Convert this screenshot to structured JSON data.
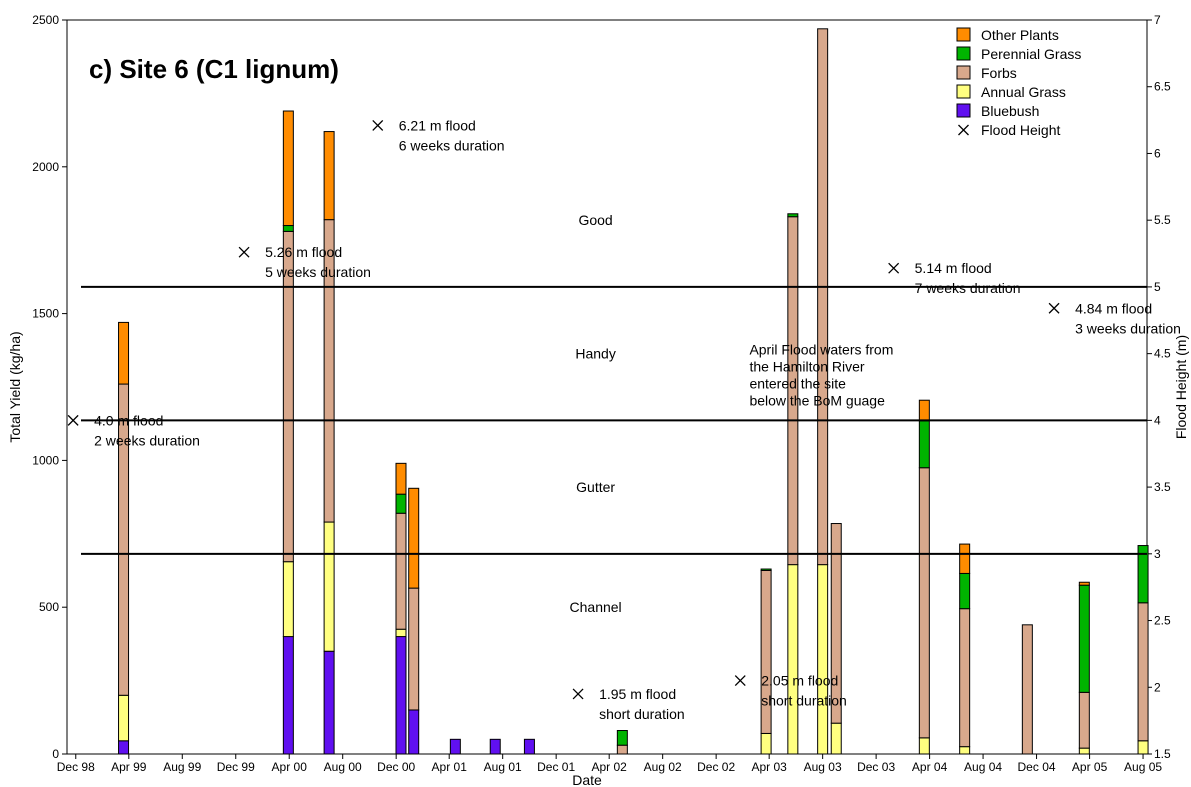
{
  "chart_data": {
    "type": "bar",
    "stacked": true,
    "title": "c) Site 6 (C1 lignum)",
    "xlabel": "Date",
    "ylabel": "Total Yield (kg/ha)",
    "y2label": "Flood Height (m)",
    "ylim": [
      0,
      2500
    ],
    "y2lim": [
      1.5,
      7
    ],
    "x_range": [
      "1998-11-11",
      "2005-08-10"
    ],
    "x_ticks": [
      {
        "date": "1998-12-01",
        "label": "Dec 98"
      },
      {
        "date": "1999-04-01",
        "label": "Apr 99"
      },
      {
        "date": "1999-08-01",
        "label": "Aug 99"
      },
      {
        "date": "1999-12-01",
        "label": "Dec 99"
      },
      {
        "date": "2000-04-01",
        "label": "Apr 00"
      },
      {
        "date": "2000-08-01",
        "label": "Aug 00"
      },
      {
        "date": "2000-12-01",
        "label": "Dec 00"
      },
      {
        "date": "2001-04-01",
        "label": "Apr 01"
      },
      {
        "date": "2001-08-01",
        "label": "Aug 01"
      },
      {
        "date": "2001-12-01",
        "label": "Dec 01"
      },
      {
        "date": "2002-04-01",
        "label": "Apr 02"
      },
      {
        "date": "2002-08-01",
        "label": "Aug 02"
      },
      {
        "date": "2002-12-01",
        "label": "Dec 02"
      },
      {
        "date": "2003-04-01",
        "label": "Apr 03"
      },
      {
        "date": "2003-08-01",
        "label": "Aug 03"
      },
      {
        "date": "2003-12-01",
        "label": "Dec 03"
      },
      {
        "date": "2004-04-01",
        "label": "Apr 04"
      },
      {
        "date": "2004-08-01",
        "label": "Aug 04"
      },
      {
        "date": "2004-12-01",
        "label": "Dec 04"
      },
      {
        "date": "2005-04-01",
        "label": "Apr 05"
      },
      {
        "date": "2005-08-01",
        "label": "Aug 05"
      }
    ],
    "y_ticks": [
      0,
      500,
      1000,
      1500,
      2000,
      2500
    ],
    "y2_ticks": [
      "1.5",
      "2",
      "2.5",
      "3",
      "3.5",
      "4",
      "4.5",
      "5",
      "5.5",
      "6",
      "6.5",
      "7"
    ],
    "series": [
      {
        "name": "Other Plants",
        "color": "#ff8c00"
      },
      {
        "name": "Perennial Grass",
        "color": "#00b400"
      },
      {
        "name": "Forbs",
        "color": "#d8a88c"
      },
      {
        "name": "Annual Grass",
        "color": "#ffff80"
      },
      {
        "name": "Bluebush",
        "color": "#6010f0"
      }
    ],
    "bars": [
      {
        "date": "1999-03-20",
        "values": {
          "Bluebush": 45,
          "Annual Grass": 155,
          "Forbs": 1060,
          "Perennial Grass": 0,
          "Other Plants": 210
        }
      },
      {
        "date": "2000-03-30",
        "values": {
          "Bluebush": 400,
          "Annual Grass": 255,
          "Forbs": 1125,
          "Perennial Grass": 20,
          "Other Plants": 390
        }
      },
      {
        "date": "2000-07-01",
        "values": {
          "Bluebush": 350,
          "Annual Grass": 440,
          "Forbs": 1030,
          "Perennial Grass": 0,
          "Other Plants": 300
        }
      },
      {
        "date": "2000-12-12",
        "values": {
          "Bluebush": 400,
          "Annual Grass": 25,
          "Forbs": 395,
          "Perennial Grass": 65,
          "Other Plants": 105
        }
      },
      {
        "date": "2001-01-10",
        "values": {
          "Bluebush": 150,
          "Annual Grass": 0,
          "Forbs": 415,
          "Perennial Grass": 0,
          "Other Plants": 340
        }
      },
      {
        "date": "2001-04-15",
        "values": {
          "Bluebush": 50,
          "Annual Grass": 0,
          "Forbs": 0,
          "Perennial Grass": 0,
          "Other Plants": 0
        }
      },
      {
        "date": "2001-07-15",
        "values": {
          "Bluebush": 50,
          "Annual Grass": 0,
          "Forbs": 0,
          "Perennial Grass": 0,
          "Other Plants": 0
        }
      },
      {
        "date": "2001-10-01",
        "values": {
          "Bluebush": 50,
          "Annual Grass": 0,
          "Forbs": 0,
          "Perennial Grass": 0,
          "Other Plants": 0
        }
      },
      {
        "date": "2002-05-01",
        "values": {
          "Bluebush": 0,
          "Annual Grass": 0,
          "Forbs": 30,
          "Perennial Grass": 50,
          "Other Plants": 0
        }
      },
      {
        "date": "2003-03-25",
        "values": {
          "Bluebush": 0,
          "Annual Grass": 70,
          "Forbs": 555,
          "Perennial Grass": 5,
          "Other Plants": 0
        }
      },
      {
        "date": "2003-05-25",
        "values": {
          "Bluebush": 0,
          "Annual Grass": 645,
          "Forbs": 1185,
          "Perennial Grass": 10,
          "Other Plants": 0
        }
      },
      {
        "date": "2003-08-01",
        "values": {
          "Bluebush": 0,
          "Annual Grass": 645,
          "Forbs": 1825,
          "Perennial Grass": 0,
          "Other Plants": 0
        }
      },
      {
        "date": "2003-09-01",
        "values": {
          "Bluebush": 0,
          "Annual Grass": 105,
          "Forbs": 680,
          "Perennial Grass": 0,
          "Other Plants": 0
        }
      },
      {
        "date": "2004-03-20",
        "values": {
          "Bluebush": 0,
          "Annual Grass": 55,
          "Forbs": 920,
          "Perennial Grass": 160,
          "Other Plants": 70
        }
      },
      {
        "date": "2004-06-20",
        "values": {
          "Bluebush": 0,
          "Annual Grass": 25,
          "Forbs": 470,
          "Perennial Grass": 120,
          "Other Plants": 100
        }
      },
      {
        "date": "2004-11-10",
        "values": {
          "Bluebush": 0,
          "Annual Grass": 0,
          "Forbs": 440,
          "Perennial Grass": 0,
          "Other Plants": 0
        }
      },
      {
        "date": "2005-03-20",
        "values": {
          "Bluebush": 0,
          "Annual Grass": 20,
          "Forbs": 190,
          "Perennial Grass": 365,
          "Other Plants": 10
        }
      },
      {
        "date": "2005-08-01",
        "values": {
          "Bluebush": 0,
          "Annual Grass": 45,
          "Forbs": 470,
          "Perennial Grass": 195,
          "Other Plants": 0
        }
      }
    ],
    "flood_points": [
      {
        "date": "1998-11-25",
        "height": 4.0,
        "label_lines": [
          "4.0 m flood",
          "2 weeks duration"
        ]
      },
      {
        "date": "1999-12-20",
        "height": 5.26,
        "label_lines": [
          "5.26 m flood",
          "5 weeks duration"
        ]
      },
      {
        "date": "2000-10-20",
        "height": 6.21,
        "label_lines": [
          "6.21 m flood",
          "6 weeks duration"
        ]
      },
      {
        "date": "2002-01-20",
        "height": 1.95,
        "label_lines": [
          "1.95 m flood",
          "short duration"
        ]
      },
      {
        "date": "2003-01-25",
        "height": 2.05,
        "label_lines": [
          "2.05 m flood",
          "short duration"
        ]
      },
      {
        "date": "2004-01-10",
        "height": 5.14,
        "label_lines": [
          "5.14 m flood",
          "7 weeks duration"
        ]
      },
      {
        "date": "2005-01-10",
        "height": 4.84,
        "label_lines": [
          "4.84 m flood",
          "3 weeks duration"
        ]
      }
    ],
    "reference_lines": [
      {
        "name": "Good",
        "height": 5.0
      },
      {
        "name": "Handy",
        "height": 4.0
      },
      {
        "name": "Gutter",
        "height": 3.0
      }
    ],
    "zone_labels": [
      {
        "text": "Good",
        "date": "2002-03-01",
        "height": 5.5
      },
      {
        "text": "Handy",
        "date": "2002-03-01",
        "height": 4.5
      },
      {
        "text": "Gutter",
        "date": "2002-03-01",
        "height": 3.5
      },
      {
        "text": "Channel",
        "date": "2002-03-01",
        "height": 2.6
      }
    ],
    "note": {
      "date": "2003-02-15",
      "height": 4.53,
      "lines": [
        "April Flood waters from",
        "the Hamilton River",
        "entered the site",
        "below the BoM guage"
      ]
    },
    "legend_position": "top-right",
    "flood_legend_label": "Flood Height",
    "grid": false
  }
}
